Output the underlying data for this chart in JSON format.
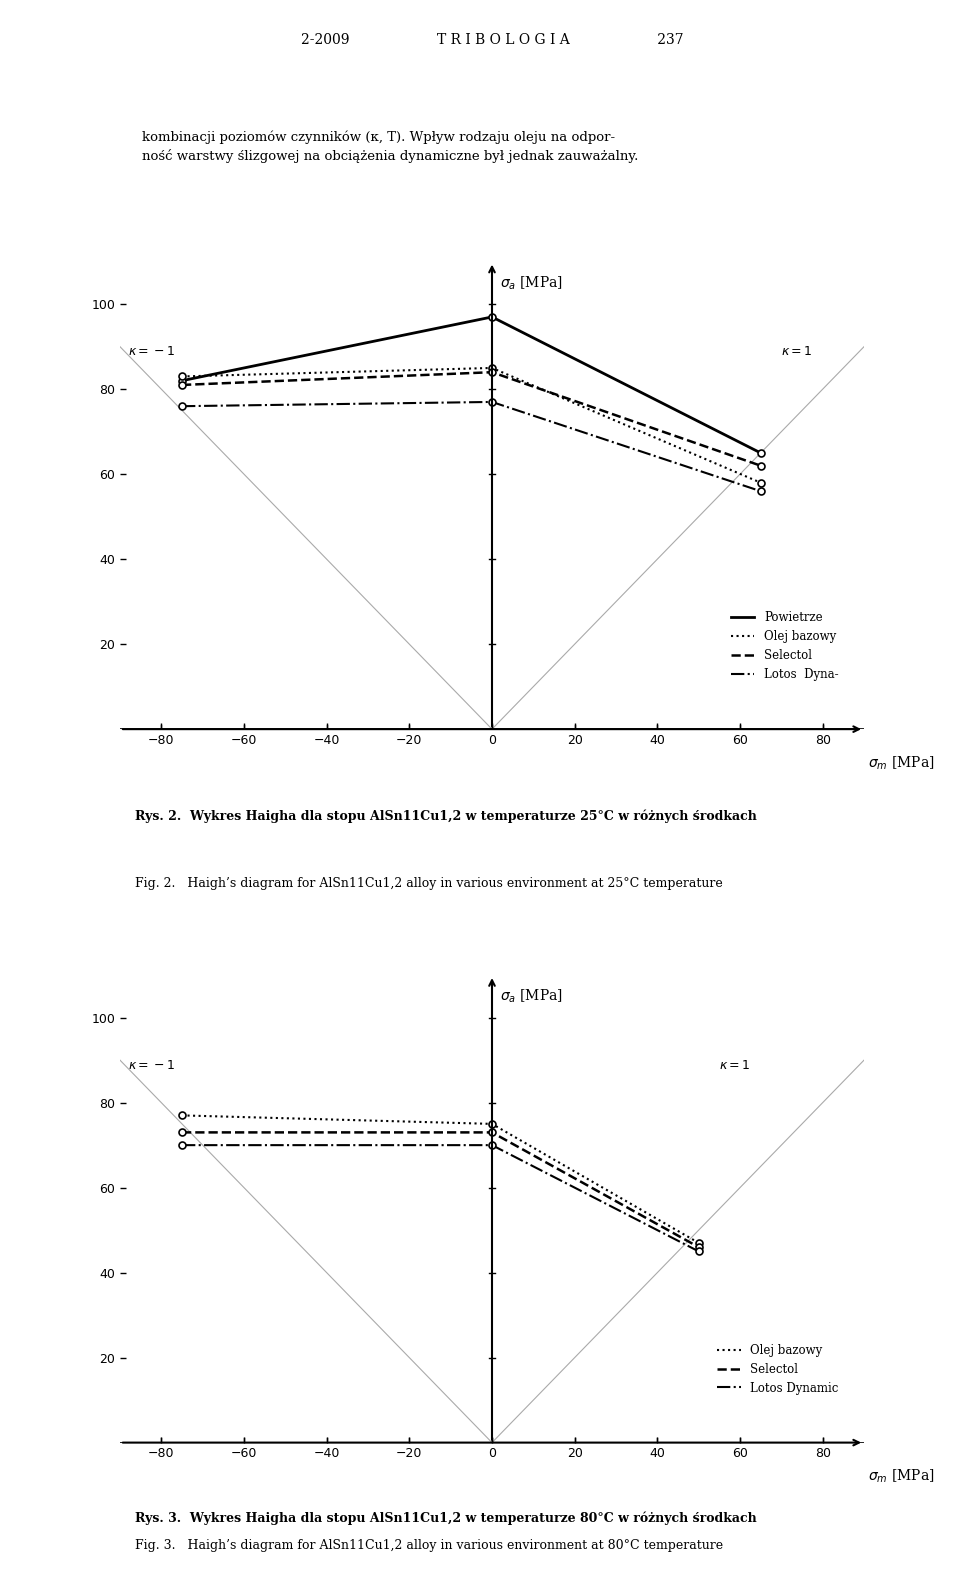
{
  "chart1": {
    "title_pl": "Rys. 2.  Wykres Haigha dla stopu AlSn11Cu1,2 w temperaturze 25°C w różnych środkach",
    "title_en": "Fig. 2.   Haigh’s diagram for AlSn11Cu1,2 alloy in various environment at 25°C temperature",
    "series": {
      "Powietrze": {
        "sigma_m": [
          -75,
          0,
          65
        ],
        "sigma_a": [
          82,
          97,
          65
        ]
      },
      "Olej bazowy": {
        "sigma_m": [
          -75,
          0,
          65
        ],
        "sigma_a": [
          83,
          85,
          58
        ]
      },
      "Selectol": {
        "sigma_m": [
          -75,
          0,
          65
        ],
        "sigma_a": [
          81,
          84,
          62
        ]
      },
      "Lotos Dyna-": {
        "sigma_m": [
          -75,
          0,
          65
        ],
        "sigma_a": [
          76,
          77,
          56
        ]
      }
    },
    "kappa_m1_x": -75,
    "kappa_1_x": 65,
    "xlim": [
      -90,
      90
    ],
    "ylim": [
      0,
      110
    ],
    "xticks": [
      -80,
      -60,
      -40,
      -20,
      0,
      20,
      40,
      60,
      80
    ],
    "yticks": [
      20,
      40,
      60,
      80,
      100
    ]
  },
  "chart2": {
    "title_pl": "Rys. 3.  Wykres Haigha dla stopu AlSn11Cu1,2 w temperaturze 80°C w różnych środkach",
    "title_en": "Fig. 3.   Haigh’s diagram for AlSn11Cu1,2 alloy in various environment at 80°C temperature",
    "series": {
      "Olej bazowy": {
        "sigma_m": [
          -75,
          0,
          50
        ],
        "sigma_a": [
          77,
          75,
          47
        ]
      },
      "Selectol": {
        "sigma_m": [
          -75,
          0,
          50
        ],
        "sigma_a": [
          73,
          73,
          46
        ]
      },
      "Lotos Dynamic": {
        "sigma_m": [
          -75,
          0,
          50
        ],
        "sigma_a": [
          70,
          70,
          45
        ]
      }
    },
    "kappa_m1_x": -75,
    "kappa_1_x": 50,
    "xlim": [
      -90,
      90
    ],
    "ylim": [
      0,
      110
    ],
    "xticks": [
      -80,
      -60,
      -40,
      -20,
      0,
      20,
      40,
      60,
      80
    ],
    "yticks": [
      20,
      40,
      60,
      80,
      100
    ]
  },
  "line_styles": {
    "Powietrze": {
      "ls": "-",
      "lw": 2.0,
      "color": "#000000"
    },
    "Olej bazowy": {
      "ls": ":",
      "lw": 1.5,
      "color": "#000000"
    },
    "Selectol": {
      "ls": "--",
      "lw": 1.8,
      "color": "#000000"
    },
    "Lotos Dyna-": {
      "ls": "-.",
      "lw": 1.5,
      "color": "#000000"
    },
    "Lotos Dynamic": {
      "ls": "-.",
      "lw": 1.5,
      "color": "#000000"
    }
  },
  "page_top_text": "2-2009                    T R I B O L O G I A                    237",
  "text_block": "kombinacji poziomów czynników (κ, T). Wpływ rodzaju oleju na odpor-\nność warstwy ślizgowej na obciążenia dynamiczne był jednak zauważalny.",
  "background_color": "#ffffff"
}
